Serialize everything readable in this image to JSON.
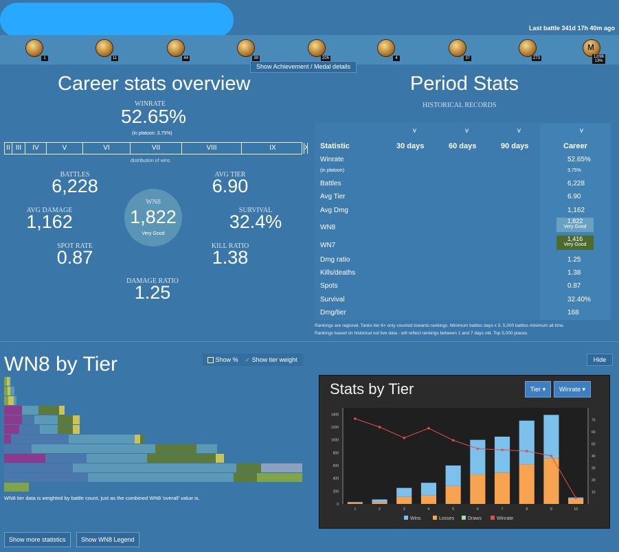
{
  "header": {
    "last_battle": "Last battle 341d 17h 40m ago"
  },
  "medals": [
    {
      "name": "medal-1-icon",
      "count": "1"
    },
    {
      "name": "medal-2-icon",
      "count": "11"
    },
    {
      "name": "medal-3-icon",
      "count": "44"
    },
    {
      "name": "medal-4-icon",
      "count": "39"
    },
    {
      "name": "medal-5-icon",
      "count": "205"
    },
    {
      "name": "medal-6-icon",
      "count": "4"
    },
    {
      "name": "medal-7-icon",
      "count": "37"
    },
    {
      "name": "medal-8-icon",
      "count": "273"
    },
    {
      "name": "mastery-icon",
      "count": "12/96\n13%",
      "letter": "M"
    }
  ],
  "medal_button": "Show Achievement / Medal details",
  "career": {
    "title": "Career stats overview",
    "winrate_label": "WINRATE",
    "winrate": "52.65%",
    "platoon": "(in platoon: 3.75%)",
    "tiers": [
      "II",
      "III",
      "IV",
      "V",
      "VI",
      "VII",
      "VIII",
      "IX",
      "X"
    ],
    "distribution_label": "distribution of wins",
    "battles_label": "BATTLES",
    "battles": "6,228",
    "avg_tier_label": "AVG TIER",
    "avg_tier": "6.90",
    "avg_damage_label": "AVG DAMAGE",
    "avg_damage": "1,162",
    "survival_label": "SURVIVAL",
    "survival": "32.4%",
    "spot_label": "SPOT RATE",
    "spot": "0.87",
    "kill_label": "KILL RATIO",
    "kill": "1.38",
    "dmg_ratio_label": "DAMAGE RATIO",
    "dmg_ratio": "1.25",
    "wn8_label": "WN8",
    "wn8": "1,822",
    "wn8_verdict": "Very Good"
  },
  "period": {
    "title": "Period Stats",
    "subtitle": "HISTORICAL RECORDS",
    "chevron": "v",
    "columns": [
      "Statistic",
      "30 days",
      "60 days",
      "90 days",
      "Career"
    ],
    "rows": [
      {
        "label": "Winrate",
        "career": "52.65%"
      },
      {
        "label": "(in platoon)",
        "career": "3.75%",
        "small": true
      },
      {
        "label": "Battles",
        "career": "6,228"
      },
      {
        "label": "Avg Tier",
        "career": "6.90"
      },
      {
        "label": "Avg Dmg",
        "career": "1,162"
      },
      {
        "label": "WN8",
        "career": "1,822",
        "verdict": "Very Good",
        "badge": "#6aa1c2"
      },
      {
        "label": "WN7",
        "career": "1,416",
        "verdict": "Very Good",
        "badge": "#4d6b2f"
      },
      {
        "label": "Dmg ratio",
        "career": "1.25"
      },
      {
        "label": "Kills/deaths",
        "career": "1.38"
      },
      {
        "label": "Spots",
        "career": "0.87"
      },
      {
        "label": "Survival",
        "career": "32.40%"
      },
      {
        "label": "Dmg/tier",
        "career": "168"
      }
    ],
    "note1": "Rankings are regional. Tanks tier 6+ only counted towards rankings. Minimum battles days x 5. 5,000 battles minimum all time.",
    "note2": "Rankings based on historical not live data - will reflect rankings between 1 and 7 days old. Top 5,000 places."
  },
  "wn8_tier": {
    "title": "WN8 by Tier",
    "show_percent": "Show %",
    "show_weight": "Show tier weight",
    "hide": "Hide",
    "note": "WN8 tier data is weighted by battle count, just as the combined WN8 'overall' value is."
  },
  "stats_by_tier": {
    "title": "Stats by Tier",
    "tier_btn": "Tier",
    "winrate_btn": "Winrate"
  },
  "chart_data": {
    "type": "bar",
    "categories": [
      "1",
      "2",
      "3",
      "4",
      "5",
      "6",
      "7",
      "8",
      "9",
      "10"
    ],
    "series": [
      {
        "name": "Wins",
        "color": "#7cc1ec",
        "values": [
          10,
          40,
          140,
          200,
          320,
          540,
          560,
          680,
          680,
          20
        ]
      },
      {
        "name": "Losses",
        "color": "#f7a34f",
        "values": [
          20,
          30,
          110,
          130,
          280,
          460,
          490,
          620,
          710,
          80
        ]
      },
      {
        "name": "Draws",
        "color": "#9ee49a",
        "values": [
          0,
          0,
          0,
          0,
          0,
          0,
          0,
          0,
          0,
          0
        ]
      },
      {
        "name": "Winrate",
        "color": "#e0504a",
        "type": "line",
        "values": [
          71,
          64,
          55,
          63,
          53,
          46,
          45,
          44,
          40,
          5
        ]
      }
    ],
    "y_left": [
      0,
      200,
      400,
      600,
      800,
      1000,
      1200,
      1400
    ],
    "y_right": [
      10,
      20,
      30,
      40,
      50,
      60,
      70
    ],
    "ylim": [
      0,
      1500
    ],
    "ylim_right": [
      0,
      80
    ],
    "legend": "bottom"
  },
  "bottom": {
    "more": "Show more statistics",
    "legend": "Show WN8 Legend"
  }
}
